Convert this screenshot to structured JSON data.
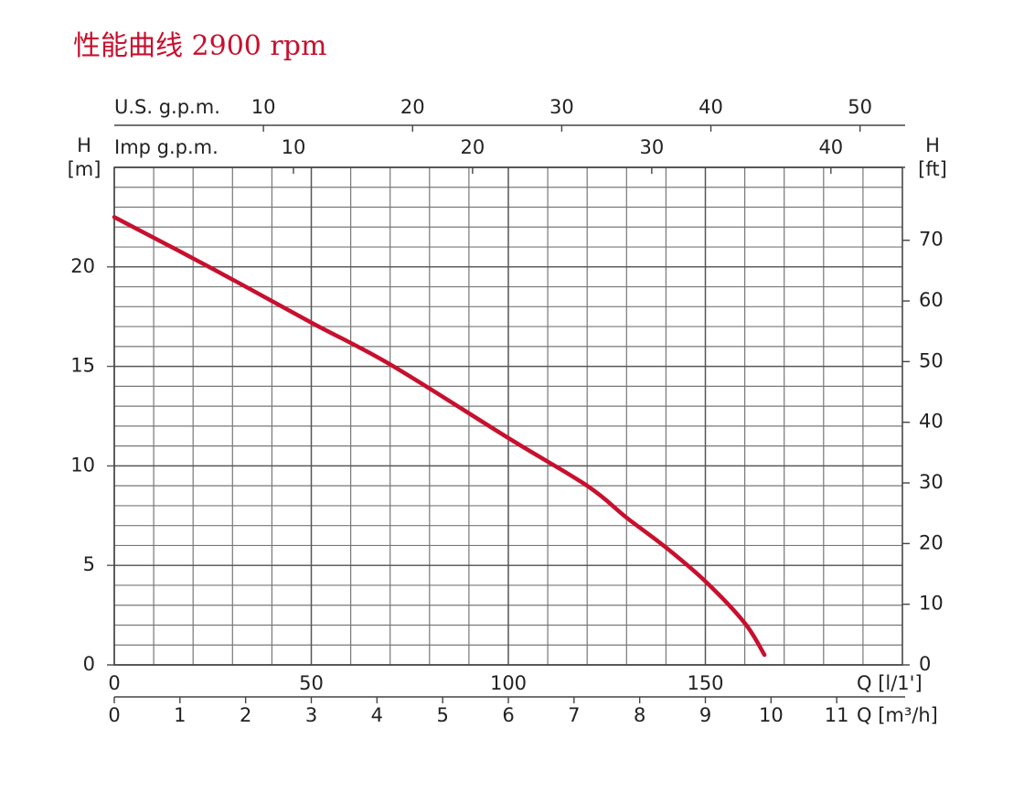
{
  "chart_data": {
    "type": "line",
    "title": "性能曲线 2900 rpm",
    "x": [
      0,
      25,
      50,
      70,
      100,
      120,
      130,
      140,
      150,
      160,
      165
    ],
    "values": [
      22.5,
      19.9,
      17.2,
      15.1,
      11.4,
      9.0,
      7.4,
      5.9,
      4.2,
      2.1,
      0.5
    ],
    "color": "#c8102e",
    "xlabel": "Q [l/1']",
    "xlim": [
      0,
      200
    ],
    "xticks": [
      0,
      50,
      100,
      150
    ],
    "ylabel": "H",
    "yunit": "[m]",
    "ylim": [
      0,
      25
    ],
    "yticks": [
      0,
      5,
      10,
      15,
      20
    ],
    "y2label": "H",
    "y2unit": "[ft]",
    "y2lim": [
      0,
      82.02
    ],
    "y2ticks": [
      0,
      10,
      20,
      30,
      40,
      50,
      60,
      70
    ],
    "x_bottom2": {
      "label": "Q [m³/h]",
      "lim": [
        0,
        12
      ],
      "ticks": [
        0,
        1,
        2,
        3,
        4,
        5,
        6,
        7,
        8,
        9,
        10,
        11
      ]
    },
    "x_top1": {
      "label": "U.S.  g.p.m.",
      "lim": [
        0,
        52.84
      ],
      "ticks": [
        10,
        20,
        30,
        40,
        50
      ]
    },
    "x_top2": {
      "label": "Imp  g.p.m.",
      "lim": [
        0,
        43.99
      ],
      "ticks": [
        10,
        20,
        30,
        40
      ]
    },
    "grid": true
  }
}
